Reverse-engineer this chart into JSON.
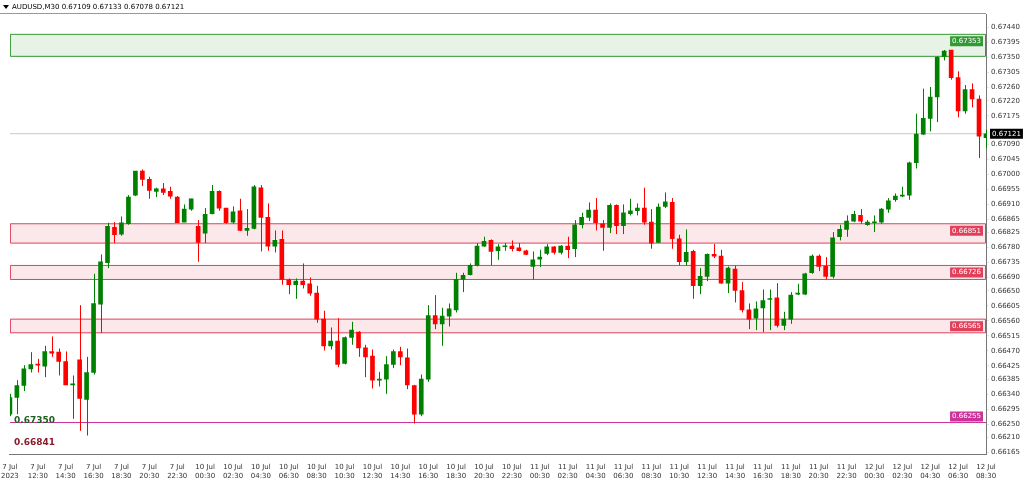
{
  "chart_data": {
    "type": "candlestick",
    "title": "AUDUSD,M30 0.67109 0.67133 0.67078 0.67121",
    "categories": [
      "7 Jul 2023",
      null,
      null,
      null,
      "7 Jul 12:30",
      null,
      null,
      null,
      "7 Jul 14:30",
      null,
      null,
      null,
      "7 Jul 16:30",
      null,
      null,
      null,
      "7 Jul 18:30",
      null,
      null,
      null,
      "7 Jul 20:30",
      null,
      null,
      null,
      "7 Jul 22:30",
      null,
      null,
      null,
      "10 Jul 00:30",
      null,
      null,
      null,
      "10 Jul 02:30",
      null,
      null,
      null,
      "10 Jul 04:30",
      null,
      null,
      null,
      "10 Jul 06:30",
      null,
      null,
      null,
      "10 Jul 08:30",
      null,
      null,
      null,
      "10 Jul 10:30",
      null,
      null,
      null,
      "10 Jul 12:30",
      null,
      null,
      null,
      "10 Jul 14:30",
      null,
      null,
      null,
      "10 Jul 16:30",
      null,
      null,
      null,
      "10 Jul 18:30",
      null,
      null,
      null,
      "10 Jul 20:30",
      null,
      null,
      null,
      "10 Jul 22:30",
      null,
      null,
      null,
      "11 Jul 00:30",
      null,
      null,
      null,
      "11 Jul 02:30",
      null,
      null,
      null,
      "11 Jul 04:30",
      null,
      null,
      null,
      "11 Jul 06:30",
      null,
      null,
      null,
      "11 Jul 08:30",
      null,
      null,
      null,
      "11 Jul 10:30",
      null,
      null,
      null,
      "11 Jul 12:30",
      null,
      null,
      null,
      "11 Jul 14:30",
      null,
      null,
      null,
      "11 Jul 16:30",
      null,
      null,
      null,
      "11 Jul 18:30",
      null,
      null,
      null,
      "11 Jul 20:30",
      null,
      null,
      null,
      "11 Jul 22:30",
      null,
      null,
      null,
      "12 Jul 00:30",
      null,
      null,
      null,
      "12 Jul 02:30",
      null,
      null,
      null,
      "12 Jul 04:30",
      null,
      null,
      null,
      "12 Jul 06:30",
      null,
      null,
      null,
      "12 Jul 08:30"
    ],
    "ohlc": [
      [
        0.6628,
        0.66341,
        0.66274,
        0.6633
      ],
      [
        0.6633,
        0.66382,
        0.6628,
        0.66366
      ],
      [
        0.66366,
        0.66427,
        0.66349,
        0.66416
      ],
      [
        0.66416,
        0.66466,
        0.66405,
        0.66429
      ],
      [
        0.66429,
        0.66446,
        0.66405,
        0.66427
      ],
      [
        0.66424,
        0.66485,
        0.66391,
        0.66468
      ],
      [
        0.66468,
        0.66513,
        0.66452,
        0.66463
      ],
      [
        0.66466,
        0.66477,
        0.66396,
        0.66438
      ],
      [
        0.66438,
        0.66468,
        0.66368,
        0.66368
      ],
      [
        0.66368,
        0.66396,
        0.66266,
        0.66371
      ],
      [
        0.66443,
        0.66607,
        0.6623,
        0.66327
      ],
      [
        0.66324,
        0.66452,
        0.66216,
        0.66405
      ],
      [
        0.66405,
        0.66701,
        0.66399,
        0.66612
      ],
      [
        0.6661,
        0.66759,
        0.66524,
        0.66737
      ],
      [
        0.66734,
        0.66854,
        0.66718,
        0.66843
      ],
      [
        0.6684,
        0.66856,
        0.66793,
        0.66818
      ],
      [
        0.6682,
        0.66873,
        0.66815,
        0.66854
      ],
      [
        0.66851,
        0.66937,
        0.66848,
        0.66931
      ],
      [
        0.66937,
        0.67009,
        0.66934,
        0.67009
      ],
      [
        0.67009,
        0.67014,
        0.66964,
        0.66984
      ],
      [
        0.66984,
        0.66992,
        0.66926,
        0.66951
      ],
      [
        0.66948,
        0.66959,
        0.66931,
        0.66956
      ],
      [
        0.66956,
        0.66973,
        0.66937,
        0.66945
      ],
      [
        0.66948,
        0.66962,
        0.66926,
        0.66934
      ],
      [
        0.66931,
        0.66934,
        0.66854,
        0.66854
      ],
      [
        0.66856,
        0.66909,
        0.66856,
        0.66895
      ],
      [
        0.66895,
        0.66926,
        0.6689,
        0.66926
      ],
      [
        0.66843,
        0.66862,
        0.66737,
        0.66795
      ],
      [
        0.66823,
        0.66898,
        0.66793,
        0.66879
      ],
      [
        0.66881,
        0.66967,
        0.66879,
        0.66948
      ],
      [
        0.66948,
        0.66951,
        0.6689,
        0.66898
      ],
      [
        0.66898,
        0.66898,
        0.66851,
        0.66854
      ],
      [
        0.66856,
        0.66903,
        0.66851,
        0.66887
      ],
      [
        0.6689,
        0.66926,
        0.66829,
        0.66831
      ],
      [
        0.66831,
        0.66895,
        0.66815,
        0.66837
      ],
      [
        0.66837,
        0.66967,
        0.66834,
        0.66962
      ],
      [
        0.66959,
        0.66967,
        0.66768,
        0.6687
      ],
      [
        0.6687,
        0.66912,
        0.6677,
        0.66784
      ],
      [
        0.66784,
        0.66831,
        0.66765,
        0.66801
      ],
      [
        0.66804,
        0.66831,
        0.66668,
        0.66684
      ],
      [
        0.66682,
        0.66687,
        0.6664,
        0.66668
      ],
      [
        0.66668,
        0.66687,
        0.66626,
        0.66679
      ],
      [
        0.66679,
        0.66732,
        0.66657,
        0.66668
      ],
      [
        0.66671,
        0.6669,
        0.66635,
        0.66643
      ],
      [
        0.66643,
        0.66665,
        0.66554,
        0.66565
      ],
      [
        0.66565,
        0.6659,
        0.66471,
        0.66485
      ],
      [
        0.66485,
        0.6654,
        0.66474,
        0.66499
      ],
      [
        0.66499,
        0.66568,
        0.66421,
        0.66429
      ],
      [
        0.66432,
        0.66513,
        0.66429,
        0.6651
      ],
      [
        0.6651,
        0.66557,
        0.66488,
        0.66532
      ],
      [
        0.66526,
        0.66529,
        0.66452,
        0.66479
      ],
      [
        0.66479,
        0.66488,
        0.66391,
        0.66452
      ],
      [
        0.66454,
        0.66474,
        0.66357,
        0.66382
      ],
      [
        0.66382,
        0.66407,
        0.66363,
        0.66385
      ],
      [
        0.66385,
        0.66454,
        0.66341,
        0.66429
      ],
      [
        0.66429,
        0.66474,
        0.66418,
        0.66468
      ],
      [
        0.66468,
        0.66482,
        0.66427,
        0.66452
      ],
      [
        0.66449,
        0.66477,
        0.66355,
        0.66368
      ],
      [
        0.66366,
        0.66368,
        0.66252,
        0.6628
      ],
      [
        0.6628,
        0.66399,
        0.66274,
        0.66385
      ],
      [
        0.66385,
        0.66607,
        0.66377,
        0.66576
      ],
      [
        0.66576,
        0.66637,
        0.66535,
        0.66551
      ],
      [
        0.66551,
        0.66599,
        0.66485,
        0.66574
      ],
      [
        0.66574,
        0.66612,
        0.66543,
        0.66596
      ],
      [
        0.66593,
        0.66704,
        0.66585,
        0.66684
      ],
      [
        0.66684,
        0.66704,
        0.66646,
        0.66696
      ],
      [
        0.66698,
        0.66732,
        0.66696,
        0.66726
      ],
      [
        0.66726,
        0.66793,
        0.66723,
        0.66784
      ],
      [
        0.66784,
        0.66812,
        0.66782,
        0.66798
      ],
      [
        0.66801,
        0.66804,
        0.66726,
        0.66768
      ],
      [
        0.6677,
        0.6679,
        0.66743,
        0.66782
      ],
      [
        0.66782,
        0.66793,
        0.6677,
        0.66784
      ],
      [
        0.66784,
        0.66801,
        0.66768,
        0.66776
      ],
      [
        0.66779,
        0.66793,
        0.66768,
        0.6677
      ],
      [
        0.6677,
        0.66773,
        0.66757,
        0.66759
      ],
      [
        0.66723,
        0.66768,
        0.66684,
        0.66743
      ],
      [
        0.66745,
        0.66773,
        0.66721,
        0.66751
      ],
      [
        0.66762,
        0.6679,
        0.66757,
        0.66782
      ],
      [
        0.66782,
        0.66784,
        0.66759,
        0.66765
      ],
      [
        0.66765,
        0.66787,
        0.66759,
        0.66784
      ],
      [
        0.66784,
        0.66812,
        0.66748,
        0.66773
      ],
      [
        0.66776,
        0.66862,
        0.66751,
        0.66848
      ],
      [
        0.66848,
        0.66884,
        0.66837,
        0.6687
      ],
      [
        0.6687,
        0.66915,
        0.66859,
        0.66892
      ],
      [
        0.66892,
        0.66928,
        0.66831,
        0.66854
      ],
      [
        0.66851,
        0.66862,
        0.6677,
        0.6684
      ],
      [
        0.6684,
        0.66912,
        0.66823,
        0.66906
      ],
      [
        0.66906,
        0.66909,
        0.6682,
        0.66845
      ],
      [
        0.66845,
        0.66909,
        0.6682,
        0.66884
      ],
      [
        0.66881,
        0.66926,
        0.66876,
        0.6689
      ],
      [
        0.6689,
        0.66912,
        0.66876,
        0.66898
      ],
      [
        0.66898,
        0.66959,
        0.66848,
        0.66856
      ],
      [
        0.66856,
        0.66895,
        0.66776,
        0.66793
      ],
      [
        0.66795,
        0.66912,
        0.66793,
        0.66901
      ],
      [
        0.66903,
        0.66945,
        0.66898,
        0.66917
      ],
      [
        0.66915,
        0.66928,
        0.66776,
        0.66806
      ],
      [
        0.66806,
        0.66818,
        0.66726,
        0.66737
      ],
      [
        0.66737,
        0.66834,
        0.66726,
        0.66765
      ],
      [
        0.66768,
        0.66773,
        0.66626,
        0.66665
      ],
      [
        0.66665,
        0.66718,
        0.6664,
        0.66693
      ],
      [
        0.66693,
        0.66762,
        0.66679,
        0.66759
      ],
      [
        0.66759,
        0.6679,
        0.66748,
        0.66754
      ],
      [
        0.66754,
        0.66773,
        0.66671,
        0.66673
      ],
      [
        0.66673,
        0.66723,
        0.66643,
        0.66718
      ],
      [
        0.66715,
        0.66726,
        0.66615,
        0.66651
      ],
      [
        0.66651,
        0.66676,
        0.66585,
        0.66593
      ],
      [
        0.66593,
        0.66612,
        0.66535,
        0.66565
      ],
      [
        0.66568,
        0.66618,
        0.66532,
        0.66596
      ],
      [
        0.66599,
        0.66654,
        0.66526,
        0.66621
      ],
      [
        0.66624,
        0.66654,
        0.66532,
        0.66626
      ],
      [
        0.66629,
        0.66673,
        0.6654,
        0.66546
      ],
      [
        0.66546,
        0.66587,
        0.66532,
        0.66565
      ],
      [
        0.66565,
        0.66646,
        0.66551,
        0.66637
      ],
      [
        0.6664,
        0.66671,
        0.66637,
        0.66643
      ],
      [
        0.6664,
        0.66704,
        0.66637,
        0.66701
      ],
      [
        0.66704,
        0.66759,
        0.66701,
        0.66754
      ],
      [
        0.66754,
        0.66759,
        0.66709,
        0.66723
      ],
      [
        0.66723,
        0.66751,
        0.66684,
        0.66693
      ],
      [
        0.66693,
        0.66826,
        0.66687,
        0.66809
      ],
      [
        0.66812,
        0.66848,
        0.66801,
        0.66834
      ],
      [
        0.66834,
        0.66876,
        0.66812,
        0.66859
      ],
      [
        0.66859,
        0.6689,
        0.66856,
        0.66879
      ],
      [
        0.66876,
        0.66895,
        0.66851,
        0.66859
      ],
      [
        0.66848,
        0.66862,
        0.66845,
        0.66856
      ],
      [
        0.66854,
        0.66876,
        0.66826,
        0.66854
      ],
      [
        0.66856,
        0.66898,
        0.66851,
        0.66895
      ],
      [
        0.66895,
        0.66928,
        0.66884,
        0.6692
      ],
      [
        0.66923,
        0.66942,
        0.66917,
        0.66934
      ],
      [
        0.66934,
        0.66962,
        0.66931,
        0.66937
      ],
      [
        0.66937,
        0.67037,
        0.66923,
        0.67034
      ],
      [
        0.67034,
        0.67181,
        0.67017,
        0.6712
      ],
      [
        0.6712,
        0.67256,
        0.67117,
        0.67167
      ],
      [
        0.67167,
        0.67261,
        0.67128,
        0.67231
      ],
      [
        0.67231,
        0.67353,
        0.67156,
        0.6735
      ],
      [
        0.67353,
        0.67372,
        0.67341,
        0.67369
      ],
      [
        0.67372,
        0.67372,
        0.67283,
        0.67289
      ],
      [
        0.67289,
        0.67308,
        0.6717,
        0.67189
      ],
      [
        0.67189,
        0.67267,
        0.67181,
        0.67253
      ],
      [
        0.67253,
        0.67272,
        0.672,
        0.67225
      ],
      [
        0.67225,
        0.67236,
        0.67048,
        0.67114
      ],
      [
        0.67109,
        0.67133,
        0.67078,
        0.67121
      ]
    ],
    "colors": [
      "#008000",
      "#008000",
      "#008000",
      "#008000",
      "#ff0000",
      "#008000",
      "#ff0000",
      "#ff0000",
      "#ff0000",
      "#008000",
      "#ff0000",
      "#008000",
      "#008000",
      "#008000",
      "#008000",
      "#ff0000",
      "#008000",
      "#008000",
      "#008000",
      "#ff0000",
      "#ff0000",
      "#008000",
      "#ff0000",
      "#ff0000",
      "#ff0000",
      "#008000",
      "#008000",
      "#ff0000",
      "#008000",
      "#008000",
      "#ff0000",
      "#ff0000",
      "#008000",
      "#ff0000",
      "#008000",
      "#008000",
      "#ff0000",
      "#ff0000",
      "#008000",
      "#ff0000",
      "#ff0000",
      "#008000",
      "#ff0000",
      "#ff0000",
      "#ff0000",
      "#ff0000",
      "#008000",
      "#ff0000",
      "#008000",
      "#008000",
      "#ff0000",
      "#ff0000",
      "#ff0000",
      "#008000",
      "#008000",
      "#008000",
      "#ff0000",
      "#ff0000",
      "#ff0000",
      "#008000",
      "#008000",
      "#ff0000",
      "#008000",
      "#008000",
      "#008000",
      "#008000",
      "#008000",
      "#008000",
      "#008000",
      "#ff0000",
      "#008000",
      "#008000",
      "#ff0000",
      "#ff0000",
      "#ff0000",
      "#008000",
      "#008000",
      "#008000",
      "#ff0000",
      "#008000",
      "#ff0000",
      "#008000",
      "#008000",
      "#008000",
      "#ff0000",
      "#ff0000",
      "#008000",
      "#ff0000",
      "#008000",
      "#008000",
      "#008000",
      "#ff0000",
      "#ff0000",
      "#008000",
      "#008000",
      "#ff0000",
      "#ff0000",
      "#008000",
      "#ff0000",
      "#008000",
      "#008000",
      "#ff0000",
      "#ff0000",
      "#008000",
      "#ff0000",
      "#ff0000",
      "#ff0000",
      "#008000",
      "#008000",
      "#008000",
      "#ff0000",
      "#008000",
      "#008000",
      "#008000",
      "#008000",
      "#008000",
      "#ff0000",
      "#ff0000",
      "#008000",
      "#008000",
      "#008000",
      "#008000",
      "#ff0000",
      "#008000",
      "#008000",
      "#008000",
      "#008000",
      "#008000",
      "#008000",
      "#008000",
      "#008000",
      "#008000",
      "#008000",
      "#008000",
      "#008000",
      "#ff0000",
      "#ff0000",
      "#008000",
      "#ff0000",
      "#ff0000",
      "#008000"
    ],
    "ylim": [
      0.6616,
      0.6748
    ],
    "yticks": [
      {
        "value": 0.6744,
        "label": "0.67440"
      },
      {
        "value": 0.67395,
        "label": "0.67395"
      },
      {
        "value": 0.6735,
        "label": "0.67350"
      },
      {
        "value": 0.67305,
        "label": "0.67305"
      },
      {
        "value": 0.6726,
        "label": "0.67260"
      },
      {
        "value": 0.6722,
        "label": "0.67220"
      },
      {
        "value": 0.67175,
        "label": "0.67175"
      },
      {
        "value": 0.6709,
        "label": "0.67090"
      },
      {
        "value": 0.67045,
        "label": "0.67045"
      },
      {
        "value": 0.67,
        "label": "0.67000"
      },
      {
        "value": 0.66955,
        "label": "0.66955"
      },
      {
        "value": 0.6691,
        "label": "0.66910"
      },
      {
        "value": 0.66865,
        "label": "0.66865"
      },
      {
        "value": 0.66825,
        "label": "0.66825"
      },
      {
        "value": 0.6678,
        "label": "0.66780"
      },
      {
        "value": 0.66735,
        "label": "0.66735"
      },
      {
        "value": 0.6669,
        "label": "0.66690"
      },
      {
        "value": 0.6665,
        "label": "0.66650"
      },
      {
        "value": 0.66605,
        "label": "0.66605"
      },
      {
        "value": 0.6656,
        "label": "0.66560"
      },
      {
        "value": 0.66515,
        "label": "0.66515"
      },
      {
        "value": 0.6647,
        "label": "0.66470"
      },
      {
        "value": 0.66425,
        "label": "0.66425"
      },
      {
        "value": 0.66385,
        "label": "0.66385"
      },
      {
        "value": 0.6634,
        "label": "0.66340"
      },
      {
        "value": 0.66295,
        "label": "0.66295"
      },
      {
        "value": 0.6625,
        "label": "0.66250"
      },
      {
        "value": 0.6621,
        "label": "0.66210"
      },
      {
        "value": 0.66165,
        "label": "0.66165"
      }
    ],
    "bands": [
      {
        "axis": "y",
        "from": 0.67353,
        "to": 0.67419,
        "label": "0.67353",
        "color": "#339933"
      },
      {
        "axis": "y",
        "from": 0.66793,
        "to": 0.66851,
        "label": "0.66851",
        "color": "#e0405a"
      },
      {
        "axis": "y",
        "from": 0.66684,
        "to": 0.66726,
        "label": "0.66726",
        "color": "#e0405a"
      },
      {
        "axis": "y",
        "from": 0.66524,
        "to": 0.66565,
        "label": "0.66565",
        "color": "#e0405a"
      }
    ],
    "ref_lines": [
      {
        "axis": "y",
        "value": 0.67121,
        "label": "0.67121",
        "color": "#c8c8c8"
      },
      {
        "axis": "y",
        "value": 0.66255,
        "label": "0.66255",
        "color": "#cc3399"
      }
    ],
    "annotations": [
      "0.67350",
      "0.66841"
    ],
    "grid": false,
    "legend": false
  }
}
